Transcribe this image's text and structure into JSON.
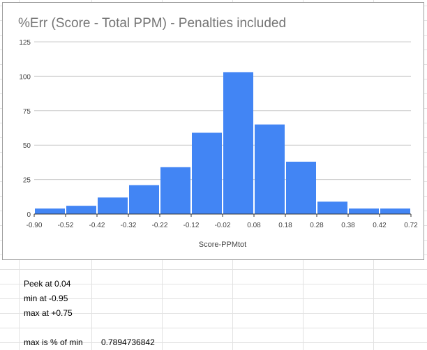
{
  "colors": {
    "bar": "#4285f4",
    "title": "#757575",
    "tick": "#444444",
    "gridline": "#cccccc",
    "sheet_gridline": "#e2e2e2"
  },
  "chart_data": {
    "type": "bar",
    "title": "%Err (Score - Total PPM) - Penalties included",
    "xlabel": "Score-PPMtot",
    "ylabel": "",
    "x_tick_labels": [
      "-0.90",
      "-0.52",
      "-0.42",
      "-0.32",
      "-0.22",
      "-0.12",
      "-0.02",
      "0.08",
      "0.18",
      "0.28",
      "0.38",
      "0.42",
      "0.72"
    ],
    "values": [
      4,
      6,
      12,
      21,
      34,
      59,
      103,
      65,
      38,
      9,
      4,
      4
    ],
    "ylim": [
      0,
      125
    ],
    "y_ticks": [
      0,
      25,
      50,
      75,
      100,
      125
    ],
    "grid": true,
    "legend": "none"
  },
  "sheet": {
    "cells": [
      {
        "text": "Peek at 0.04"
      },
      {
        "text": "min at -0.95"
      },
      {
        "text": "max at +0.75"
      },
      {
        "text": "max is % of min"
      },
      {
        "text": "0.7894736842"
      }
    ]
  }
}
